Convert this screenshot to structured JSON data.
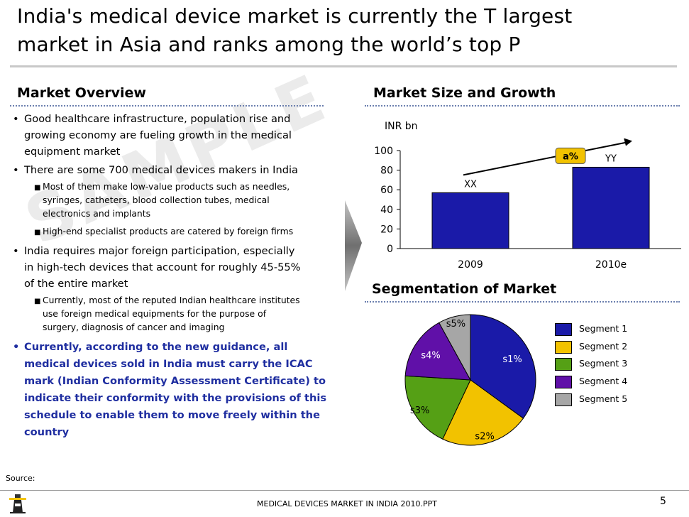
{
  "slide": {
    "title_line1": "India's medical device market is currently the T largest",
    "title_line2": "market in Asia and ranks among the world’s top P",
    "watermark": "SAMPLE",
    "source_label": "Source:",
    "footer_text": "MEDICAL DEVICES MARKET IN INDIA 2010.PPT",
    "page_number": "5"
  },
  "overview": {
    "heading": "Market Overview",
    "b1_l1": "Good healthcare infrastructure, population rise and",
    "b1_l2": "growing economy are fueling growth in the medical",
    "b1_l3": "equipment market",
    "b2_l1": "There are some 700 medical devices makers in India",
    "s1_l1": "Most of them make low-value products such as needles,",
    "s1_l2": "syringes, catheters, blood collection tubes, medical",
    "s1_l3": "electronics and implants",
    "s2_l1": "High-end specialist products are catered by foreign firms",
    "b3_l1": "India requires major foreign participation, especially",
    "b3_l2": "in high-tech devices that account for roughly 45-55%",
    "b3_l3": "of the entire market",
    "s3_l1": "Currently, most of the reputed Indian healthcare institutes",
    "s3_l2": "use foreign medical equipments for the purpose of",
    "s3_l3": "surgery, diagnosis of cancer and imaging",
    "b4_l1": "Currently, according to the new guidance, all",
    "b4_l2": "medical devices sold in India must carry the ICAC",
    "b4_l3": "mark (Indian Conformity Assessment Certificate) to",
    "b4_l4": "indicate their conformity with the provisions of this",
    "b4_l5": "schedule to enable them to move freely within the",
    "b4_l6": "country"
  },
  "colors": {
    "bar": "#1a1aa8",
    "seg1": "#1a1aa8",
    "seg2": "#f2c200",
    "seg3": "#55a015",
    "seg4": "#6010a8",
    "seg5": "#a6a6a6",
    "accent_blue": "#1f2ea0",
    "growth_badge": "#f2c200"
  },
  "chart_data": [
    {
      "type": "bar",
      "title": "Market Size and Growth",
      "ylabel": "INR bn",
      "categories": [
        "2009",
        "2010e"
      ],
      "values": [
        57,
        83
      ],
      "data_labels": [
        "XX",
        "YY"
      ],
      "ylim": [
        0,
        100
      ],
      "yticks": [
        0,
        20,
        40,
        60,
        80,
        100
      ],
      "ytick_labels": [
        "0",
        "20",
        "40",
        "60",
        "80",
        "100"
      ],
      "growth_label": "a%"
    },
    {
      "type": "pie",
      "title": "Segmentation of Market",
      "legend": [
        "Segment 1",
        "Segment 2",
        "Segment 3",
        "Segment 4",
        "Segment 5"
      ],
      "slice_labels": [
        "s1%",
        "s2%",
        "s3%",
        "s4%",
        "s5%"
      ],
      "values": [
        35,
        22,
        19,
        16,
        8
      ]
    }
  ]
}
